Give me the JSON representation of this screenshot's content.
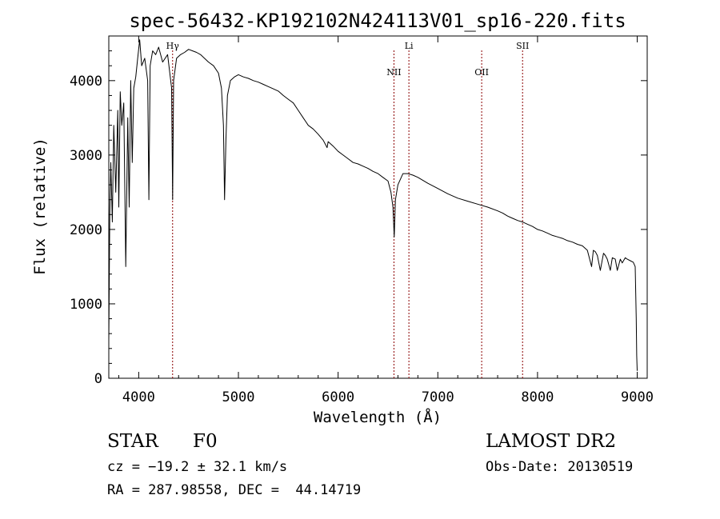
{
  "chart_data": {
    "type": "line",
    "title": "spec-56432-KP192102N424113V01_sp16-220.fits",
    "xlabel": "Wavelength (Å)",
    "ylabel": "Flux (relative)",
    "xlim": [
      3700,
      9100
    ],
    "ylim": [
      0,
      4600
    ],
    "xticks": [
      4000,
      5000,
      6000,
      7000,
      8000,
      9000
    ],
    "yticks": [
      0,
      1000,
      2000,
      3000,
      4000
    ],
    "grid": false,
    "line_color": "#000000",
    "marker_color": "#8b0000",
    "series": [
      {
        "x": [
          3700,
          3710,
          3720,
          3735,
          3750,
          3770,
          3790,
          3800,
          3815,
          3830,
          3850,
          3870,
          3890,
          3905,
          3920,
          3935,
          3950,
          3970,
          3990,
          4010,
          4030,
          4060,
          4090,
          4102,
          4115,
          4140,
          4170,
          4200,
          4240,
          4290,
          4330,
          4340,
          4350,
          4380,
          4420,
          4460,
          4500,
          4540,
          4580,
          4620,
          4660,
          4700,
          4750,
          4800,
          4830,
          4850,
          4861,
          4875,
          4890,
          4920,
          4960,
          5000,
          5050,
          5100,
          5150,
          5200,
          5250,
          5300,
          5350,
          5400,
          5450,
          5500,
          5550,
          5600,
          5650,
          5700,
          5750,
          5800,
          5850,
          5890,
          5900,
          5950,
          6000,
          6050,
          6100,
          6150,
          6200,
          6250,
          6300,
          6350,
          6400,
          6450,
          6500,
          6530,
          6550,
          6563,
          6575,
          6600,
          6650,
          6700,
          6750,
          6800,
          6900,
          7000,
          7100,
          7200,
          7300,
          7400,
          7500,
          7600,
          7650,
          7700,
          7750,
          7800,
          7850,
          7900,
          7950,
          8000,
          8050,
          8100,
          8150,
          8200,
          8250,
          8300,
          8350,
          8400,
          8450,
          8500,
          8542,
          8560,
          8580,
          8600,
          8630,
          8662,
          8680,
          8700,
          8730,
          8750,
          8780,
          8800,
          8830,
          8850,
          8880,
          8900,
          8930,
          8960,
          8980,
          8990,
          8995,
          9000
        ],
        "y": [
          500,
          2200,
          2900,
          2100,
          3400,
          2500,
          3600,
          2300,
          3850,
          3400,
          3700,
          1500,
          3500,
          2300,
          4000,
          2900,
          3900,
          4050,
          4300,
          4550,
          4200,
          4300,
          4000,
          2400,
          4200,
          4400,
          4350,
          4450,
          4250,
          4350,
          3900,
          2400,
          4000,
          4300,
          4350,
          4380,
          4420,
          4400,
          4380,
          4350,
          4300,
          4250,
          4200,
          4100,
          3900,
          3400,
          2400,
          3200,
          3800,
          4000,
          4050,
          4080,
          4050,
          4030,
          4000,
          3980,
          3950,
          3920,
          3890,
          3860,
          3800,
          3750,
          3700,
          3600,
          3500,
          3400,
          3350,
          3280,
          3200,
          3100,
          3180,
          3120,
          3050,
          3000,
          2950,
          2900,
          2880,
          2850,
          2820,
          2780,
          2750,
          2700,
          2650,
          2500,
          2300,
          1900,
          2400,
          2600,
          2750,
          2750,
          2730,
          2700,
          2620,
          2550,
          2480,
          2420,
          2380,
          2340,
          2300,
          2250,
          2220,
          2180,
          2150,
          2120,
          2100,
          2070,
          2040,
          2000,
          1980,
          1950,
          1920,
          1900,
          1880,
          1850,
          1830,
          1800,
          1780,
          1720,
          1500,
          1720,
          1700,
          1650,
          1450,
          1680,
          1650,
          1600,
          1450,
          1620,
          1600,
          1450,
          1600,
          1550,
          1620,
          1600,
          1580,
          1560,
          1500,
          800,
          300,
          100
        ]
      }
    ],
    "line_markers": [
      {
        "x": 4340,
        "label": "Hγ"
      },
      {
        "x": 6560,
        "label": "NII"
      },
      {
        "x": 6710,
        "label": "Li"
      },
      {
        "x": 7440,
        "label": "OII"
      },
      {
        "x": 7850,
        "label": "SII"
      }
    ]
  },
  "footer": {
    "object_class": "STAR",
    "subclass": "F0",
    "survey": "LAMOST DR2",
    "cz": "cz = −19.2 ± 32.1 km/s",
    "obs_date": "Obs-Date: 20130519",
    "coords": "RA = 287.98558, DEC =  44.14719"
  }
}
